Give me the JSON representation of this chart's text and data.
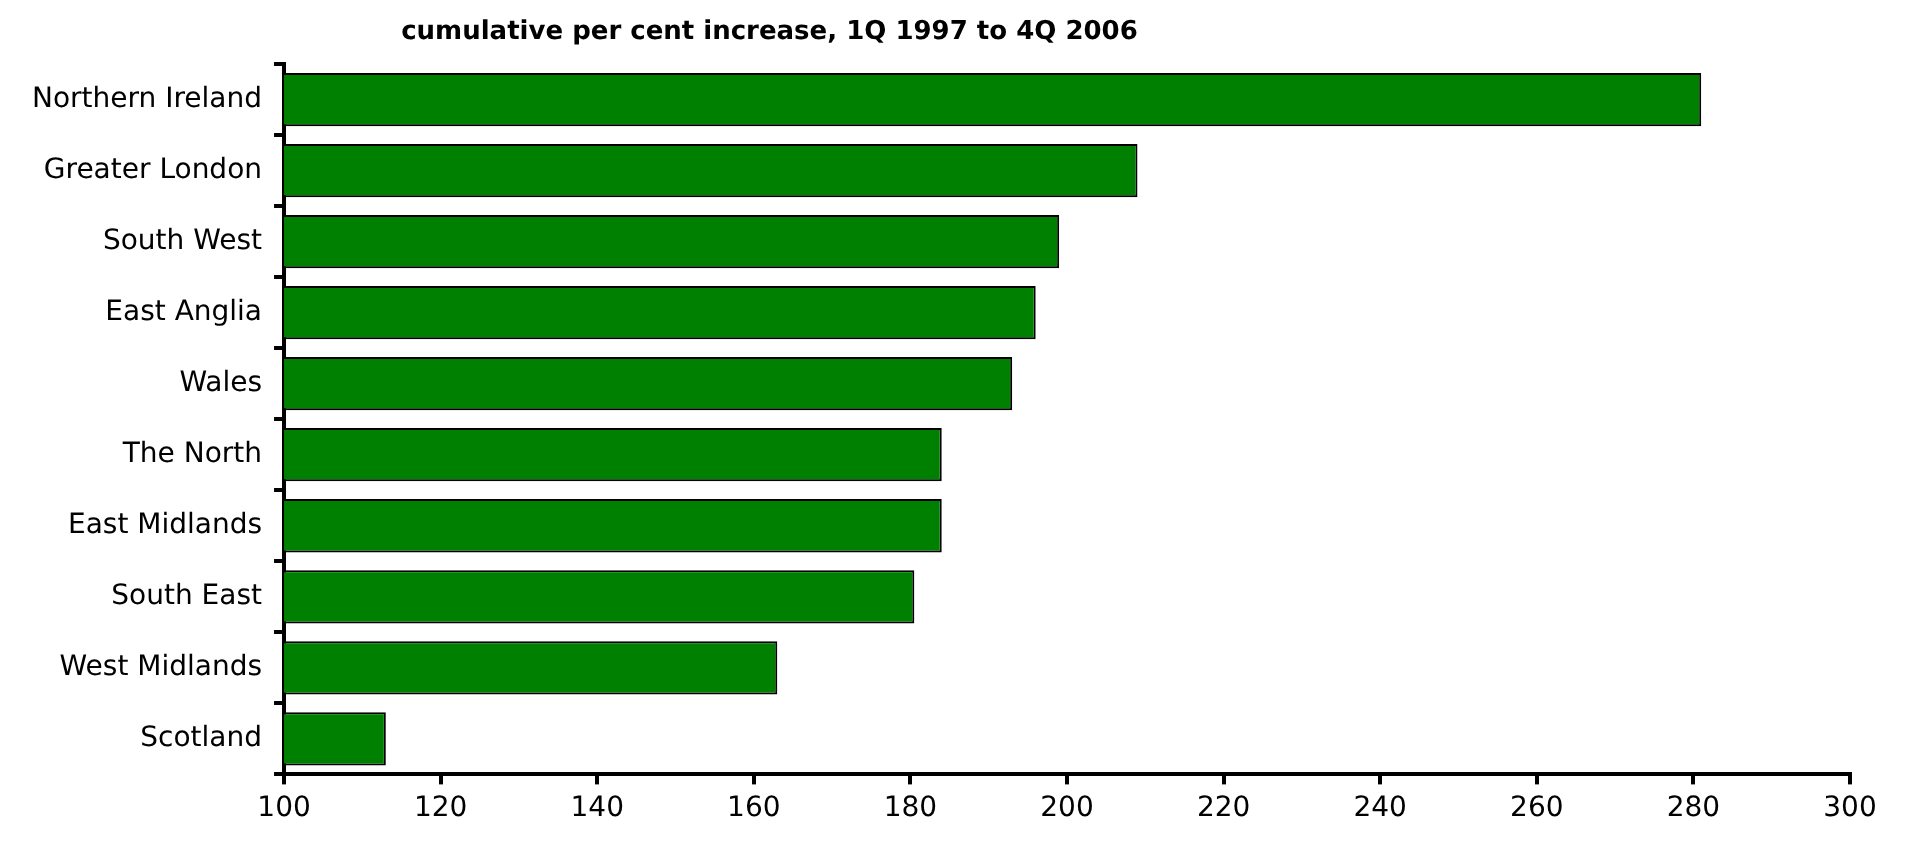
{
  "chart_data": {
    "type": "bar",
    "orientation": "horizontal",
    "title": "cumulative per cent increase, 1Q 1997 to 4Q 2006",
    "categories": [
      "Northern Ireland",
      "Greater London",
      "South West",
      "East Anglia",
      "Wales",
      "The North",
      "East Midlands",
      "South East",
      "West Midlands",
      "Scotland"
    ],
    "values": [
      281,
      209,
      199,
      196,
      193,
      184,
      184,
      180.5,
      163,
      113
    ],
    "color": "#008000",
    "xlim": [
      100,
      300
    ],
    "xticks": [
      100,
      120,
      140,
      160,
      180,
      200,
      220,
      240,
      260,
      280,
      300
    ],
    "grid": false,
    "legend": false
  }
}
